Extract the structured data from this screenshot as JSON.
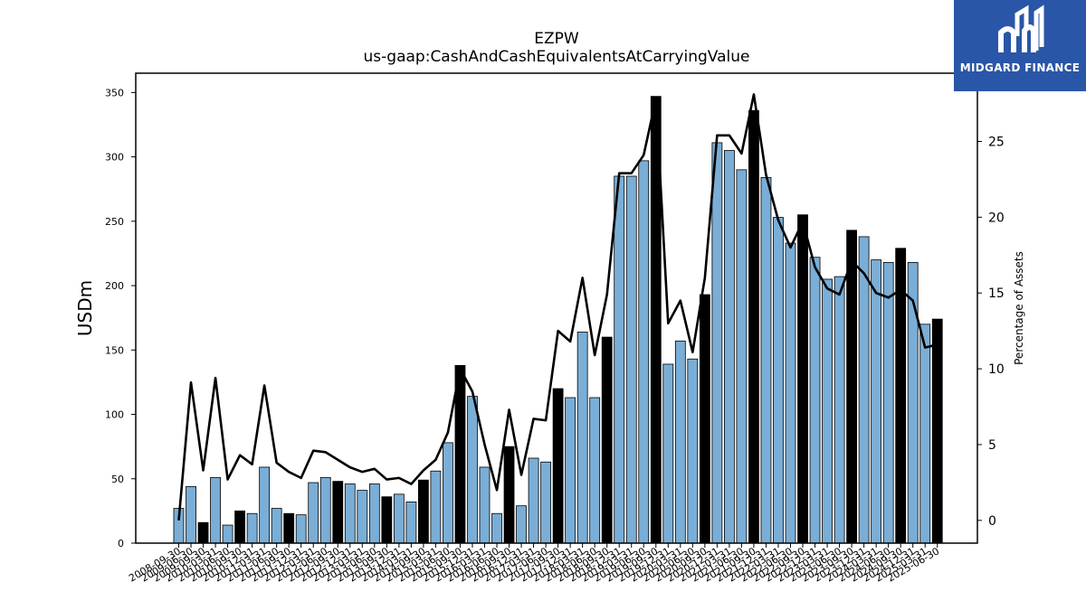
{
  "chart_data": {
    "type": "bar",
    "title": "EZPW",
    "subtitle": "us-gaap:CashAndCashEquivalentsAtCarryingValue",
    "ylabel": "USDm",
    "y2label": "Percentage of Assets",
    "ylim": [
      0,
      365
    ],
    "y2lim": [
      -1.5,
      29.5
    ],
    "yticks": [
      0,
      50,
      100,
      150,
      200,
      250,
      300,
      350
    ],
    "y2ticks": [
      0,
      5,
      10,
      15,
      20,
      25
    ],
    "grid": false,
    "colors": {
      "quarterly_bar": "#7aaed6",
      "annual_bar": "#000000",
      "line": "#000000"
    },
    "categories": [
      "2008-09-30",
      "2009-06-30",
      "2009-09-30",
      "2010-03-31",
      "2010-06-30",
      "2010-09-30",
      "2010-12-31",
      "2011-03-31",
      "2011-06-30",
      "2011-09-30",
      "2011-12-31",
      "2012-03-31",
      "2012-06-30",
      "2012-09-30",
      "2012-12-31",
      "2013-03-31",
      "2013-06-30",
      "2013-09-30",
      "2013-12-31",
      "2014-03-31",
      "2014-09-30",
      "2015-03-31",
      "2015-06-30",
      "2015-09-30",
      "2015-12-31",
      "2016-03-31",
      "2016-06-30",
      "2016-09-30",
      "2016-12-31",
      "2017-03-31",
      "2017-06-30",
      "2017-09-30",
      "2017-12-31",
      "2018-03-31",
      "2018-06-30",
      "2018-09-30",
      "2018-12-31",
      "2019-03-31",
      "2019-06-30",
      "2019-09-30",
      "2019-12-31",
      "2020-03-31",
      "2020-06-30",
      "2020-09-30",
      "2020-12-31",
      "2021-03-31",
      "2021-06-30",
      "2021-09-30",
      "2021-12-31",
      "2022-03-31",
      "2022-06-30",
      "2022-09-30",
      "2022-12-31",
      "2023-03-31",
      "2023-06-30",
      "2023-09-30",
      "2023-12-31",
      "2024-03-31",
      "2024-06-30",
      "2024-09-30",
      "2024-12-31",
      "2025-03-31",
      "2025-06-30"
    ],
    "annual_flags": [
      false,
      false,
      true,
      false,
      false,
      true,
      false,
      false,
      false,
      true,
      false,
      false,
      false,
      true,
      false,
      false,
      false,
      true,
      false,
      false,
      true,
      false,
      false,
      true,
      false,
      false,
      false,
      true,
      false,
      false,
      false,
      true,
      false,
      false,
      false,
      true,
      false,
      false,
      false,
      true,
      false,
      false,
      false,
      true,
      false,
      false,
      false,
      true,
      false,
      false,
      false,
      true,
      false,
      false,
      false,
      true,
      false,
      false,
      false,
      true,
      false,
      false,
      true
    ],
    "series": [
      {
        "name": "",
        "values": [
          27,
          44,
          16,
          51,
          14,
          25,
          23,
          59,
          27,
          23,
          22,
          47,
          51,
          48,
          46,
          41,
          46,
          36,
          38,
          32,
          49,
          56,
          78,
          138,
          114,
          59,
          23,
          75,
          29,
          66,
          63,
          120,
          113,
          164,
          113,
          160,
          285,
          285,
          297,
          347,
          139,
          157,
          143,
          193,
          311,
          305,
          290,
          336,
          284,
          253,
          233,
          255,
          222,
          205,
          207,
          243,
          238,
          220,
          218,
          229,
          218,
          170,
          174
        ]
      },
      {
        "name": "",
        "axis": "right",
        "values": [
          0,
          9.1,
          3.3,
          9.4,
          2.7,
          4.3,
          3.7,
          8.9,
          3.8,
          3.2,
          2.8,
          4.6,
          4.5,
          4.0,
          3.5,
          3.2,
          3.4,
          2.7,
          2.8,
          2.4,
          3.3,
          4.0,
          5.8,
          10.0,
          8.5,
          5.0,
          2.0,
          7.3,
          3.0,
          6.7,
          6.6,
          12.5,
          11.8,
          16.0,
          10.9,
          14.9,
          22.9,
          22.9,
          24.1,
          27.8,
          13.0,
          14.5,
          11.1,
          16.0,
          25.4,
          25.4,
          24.2,
          28.1,
          22.8,
          19.8,
          18.0,
          19.7,
          16.7,
          15.3,
          14.9,
          17.1,
          16.3,
          15.0,
          14.7,
          15.2,
          14.5,
          11.4,
          11.6
        ]
      }
    ]
  }
}
